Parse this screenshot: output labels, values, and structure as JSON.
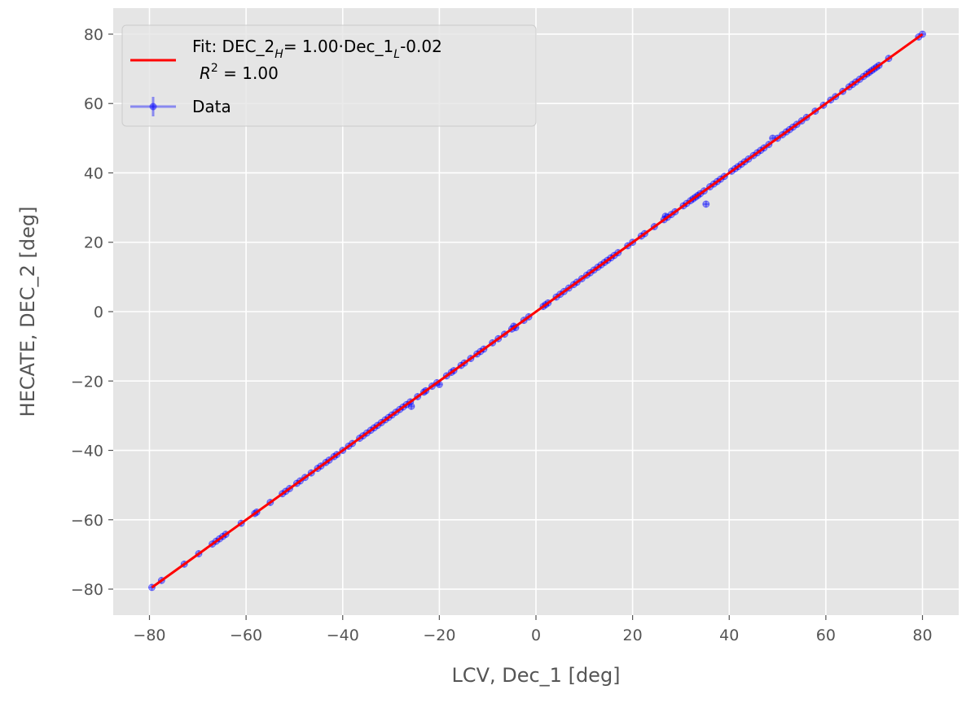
{
  "chart_data": {
    "type": "scatter",
    "xlabel": "LCV, Dec_1 [deg]",
    "ylabel": "HECATE, DEC_2 [deg]",
    "xlim": [
      -87.5,
      87.5
    ],
    "ylim": [
      -87.5,
      87.5
    ],
    "xticks": [
      -80,
      -60,
      -40,
      -20,
      0,
      20,
      40,
      60,
      80
    ],
    "yticks": [
      -80,
      -60,
      -40,
      -20,
      0,
      20,
      40,
      60,
      80
    ],
    "xtick_labels": [
      "−80",
      "−60",
      "−40",
      "−20",
      "0",
      "20",
      "40",
      "60",
      "80"
    ],
    "ytick_labels": [
      "−80",
      "−60",
      "−40",
      "−20",
      "0",
      "20",
      "40",
      "60",
      "80"
    ],
    "grid": true,
    "legend_position": "top-left",
    "fit": {
      "label": "Fit: DEC_2H= 1.00·Dec_1L-0.02",
      "r2_label": "R² = 1.00",
      "slope": 1.0,
      "intercept": -0.02,
      "x_range": [
        -79.5,
        80.0
      ],
      "color": "#ff0000"
    },
    "series": [
      {
        "name": "Data",
        "color": "#0000ff",
        "x": [
          -79.5,
          -77.5,
          -72.8,
          -69.8,
          -67.0,
          -66.2,
          -65.5,
          -64.8,
          -64.2,
          -61.0,
          -58.2,
          -57.8,
          -55.0,
          -52.5,
          -51.8,
          -51.0,
          -49.5,
          -48.8,
          -47.8,
          -46.5,
          -45.2,
          -44.5,
          -43.5,
          -42.8,
          -41.8,
          -41.2,
          -40.0,
          -38.8,
          -38.0,
          -36.5,
          -35.8,
          -35.0,
          -34.2,
          -33.5,
          -32.8,
          -32.0,
          -31.2,
          -30.5,
          -29.8,
          -29.0,
          -28.2,
          -27.5,
          -26.8,
          -26.0,
          -25.8,
          -24.5,
          -23.2,
          -22.8,
          -21.5,
          -20.5,
          -20.0,
          -18.5,
          -17.5,
          -17.0,
          -15.5,
          -14.8,
          -13.5,
          -12.2,
          -11.5,
          -10.8,
          -9.0,
          -7.8,
          -6.5,
          -5.0,
          -4.6,
          -4.2,
          -2.5,
          -1.5,
          1.5,
          2.0,
          2.5,
          4.2,
          5.0,
          5.8,
          6.8,
          7.8,
          8.5,
          9.5,
          10.5,
          11.2,
          12.0,
          12.8,
          13.5,
          14.2,
          14.8,
          15.5,
          16.2,
          17.0,
          19.0,
          20.0,
          21.8,
          22.5,
          24.5,
          26.5,
          26.8,
          27.2,
          28.0,
          28.8,
          30.5,
          31.2,
          32.0,
          32.5,
          33.0,
          33.5,
          34.0,
          34.8,
          35.2,
          36.0,
          36.8,
          37.5,
          38.2,
          39.0,
          40.5,
          41.2,
          41.8,
          42.5,
          43.2,
          44.0,
          45.0,
          45.8,
          46.5,
          47.2,
          48.2,
          49.0,
          50.0,
          51.0,
          51.8,
          52.5,
          53.2,
          54.0,
          55.0,
          56.0,
          57.8,
          59.5,
          61.0,
          62.0,
          63.5,
          64.8,
          65.5,
          66.2,
          67.0,
          67.8,
          68.5,
          69.0,
          69.5,
          70.0,
          70.5,
          71.0,
          73.0,
          79.2,
          80.0
        ],
        "y": [
          -79.5,
          -77.5,
          -72.8,
          -69.8,
          -67.0,
          -66.2,
          -65.5,
          -64.8,
          -64.2,
          -61.0,
          -58.2,
          -57.8,
          -55.0,
          -52.5,
          -51.8,
          -51.0,
          -49.5,
          -48.8,
          -47.8,
          -46.5,
          -45.2,
          -44.5,
          -43.5,
          -42.8,
          -41.8,
          -41.2,
          -40.0,
          -38.8,
          -38.0,
          -36.5,
          -35.8,
          -35.0,
          -34.2,
          -33.5,
          -32.8,
          -32.0,
          -31.2,
          -30.5,
          -29.8,
          -29.0,
          -28.2,
          -27.5,
          -26.8,
          -26.0,
          -27.3,
          -24.5,
          -23.2,
          -22.8,
          -21.5,
          -20.5,
          -21.0,
          -18.5,
          -17.5,
          -17.0,
          -15.5,
          -14.8,
          -13.5,
          -12.2,
          -11.5,
          -10.8,
          -9.0,
          -7.8,
          -6.5,
          -5.0,
          -4.2,
          -4.6,
          -2.5,
          -1.5,
          1.5,
          2.0,
          2.5,
          4.2,
          5.0,
          5.8,
          6.8,
          7.8,
          8.5,
          9.5,
          10.5,
          11.2,
          12.0,
          12.8,
          13.5,
          14.2,
          14.8,
          15.5,
          16.2,
          17.0,
          19.0,
          20.0,
          21.8,
          22.5,
          24.5,
          26.5,
          27.5,
          27.2,
          28.0,
          28.8,
          30.5,
          31.2,
          32.0,
          32.5,
          33.0,
          33.5,
          34.0,
          34.8,
          31.0,
          36.0,
          36.8,
          37.5,
          38.2,
          39.0,
          40.5,
          41.2,
          41.8,
          42.5,
          43.2,
          44.0,
          45.0,
          45.8,
          46.5,
          47.2,
          48.2,
          50.0,
          50.0,
          51.0,
          51.8,
          52.5,
          53.2,
          54.0,
          55.0,
          56.0,
          57.8,
          59.5,
          61.0,
          62.0,
          63.5,
          64.8,
          65.5,
          66.2,
          67.0,
          67.8,
          68.5,
          69.0,
          69.5,
          70.0,
          70.5,
          71.0,
          73.0,
          79.2,
          80.0
        ]
      }
    ]
  }
}
